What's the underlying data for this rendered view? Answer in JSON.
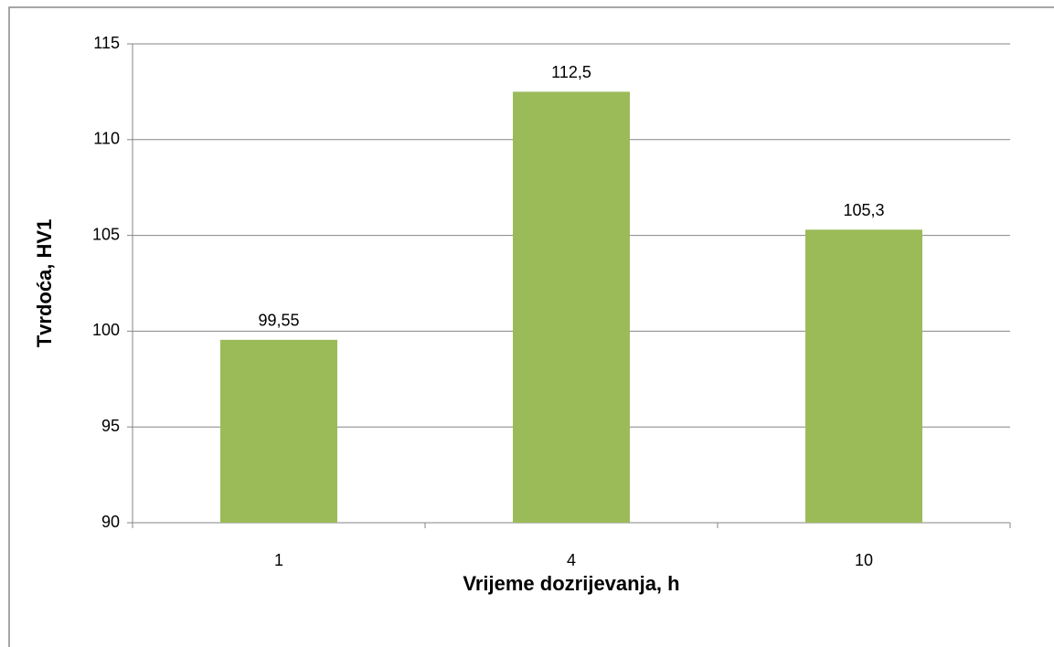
{
  "chart_data": {
    "type": "bar",
    "x_label": "Vrijeme dozrijevanja, h",
    "y_label": "Tvrdoća, HV1",
    "categories": [
      "1",
      "4",
      "10"
    ],
    "values": [
      99.55,
      112.5,
      105.3
    ],
    "value_labels": [
      "99,55",
      "112,5",
      "105,3"
    ],
    "color": "#9bbb59",
    "ylim": [
      90,
      115
    ],
    "yticks": [
      90,
      95,
      100,
      105,
      110,
      115
    ],
    "grid": true
  }
}
